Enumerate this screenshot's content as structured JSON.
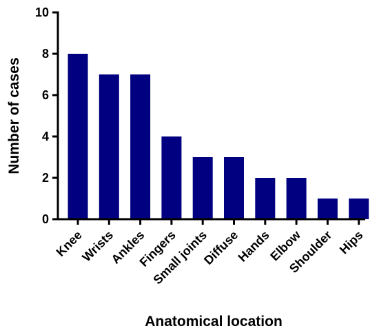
{
  "chart_data": {
    "type": "bar",
    "xlabel": "Anatomical location",
    "ylabel": "Number of cases",
    "categories": [
      "Knee",
      "Wrists",
      "Ankles",
      "Fingers",
      "Small joints",
      "Diffuse",
      "Hands",
      "Elbow",
      "Shoulder",
      "Hips"
    ],
    "values": [
      8,
      7,
      7,
      4,
      3,
      3,
      2,
      2,
      1,
      1
    ],
    "ylim": [
      0,
      10
    ],
    "yticks": [
      0,
      2,
      4,
      6,
      8,
      10
    ],
    "grid": false,
    "bar_color": "#000080"
  }
}
